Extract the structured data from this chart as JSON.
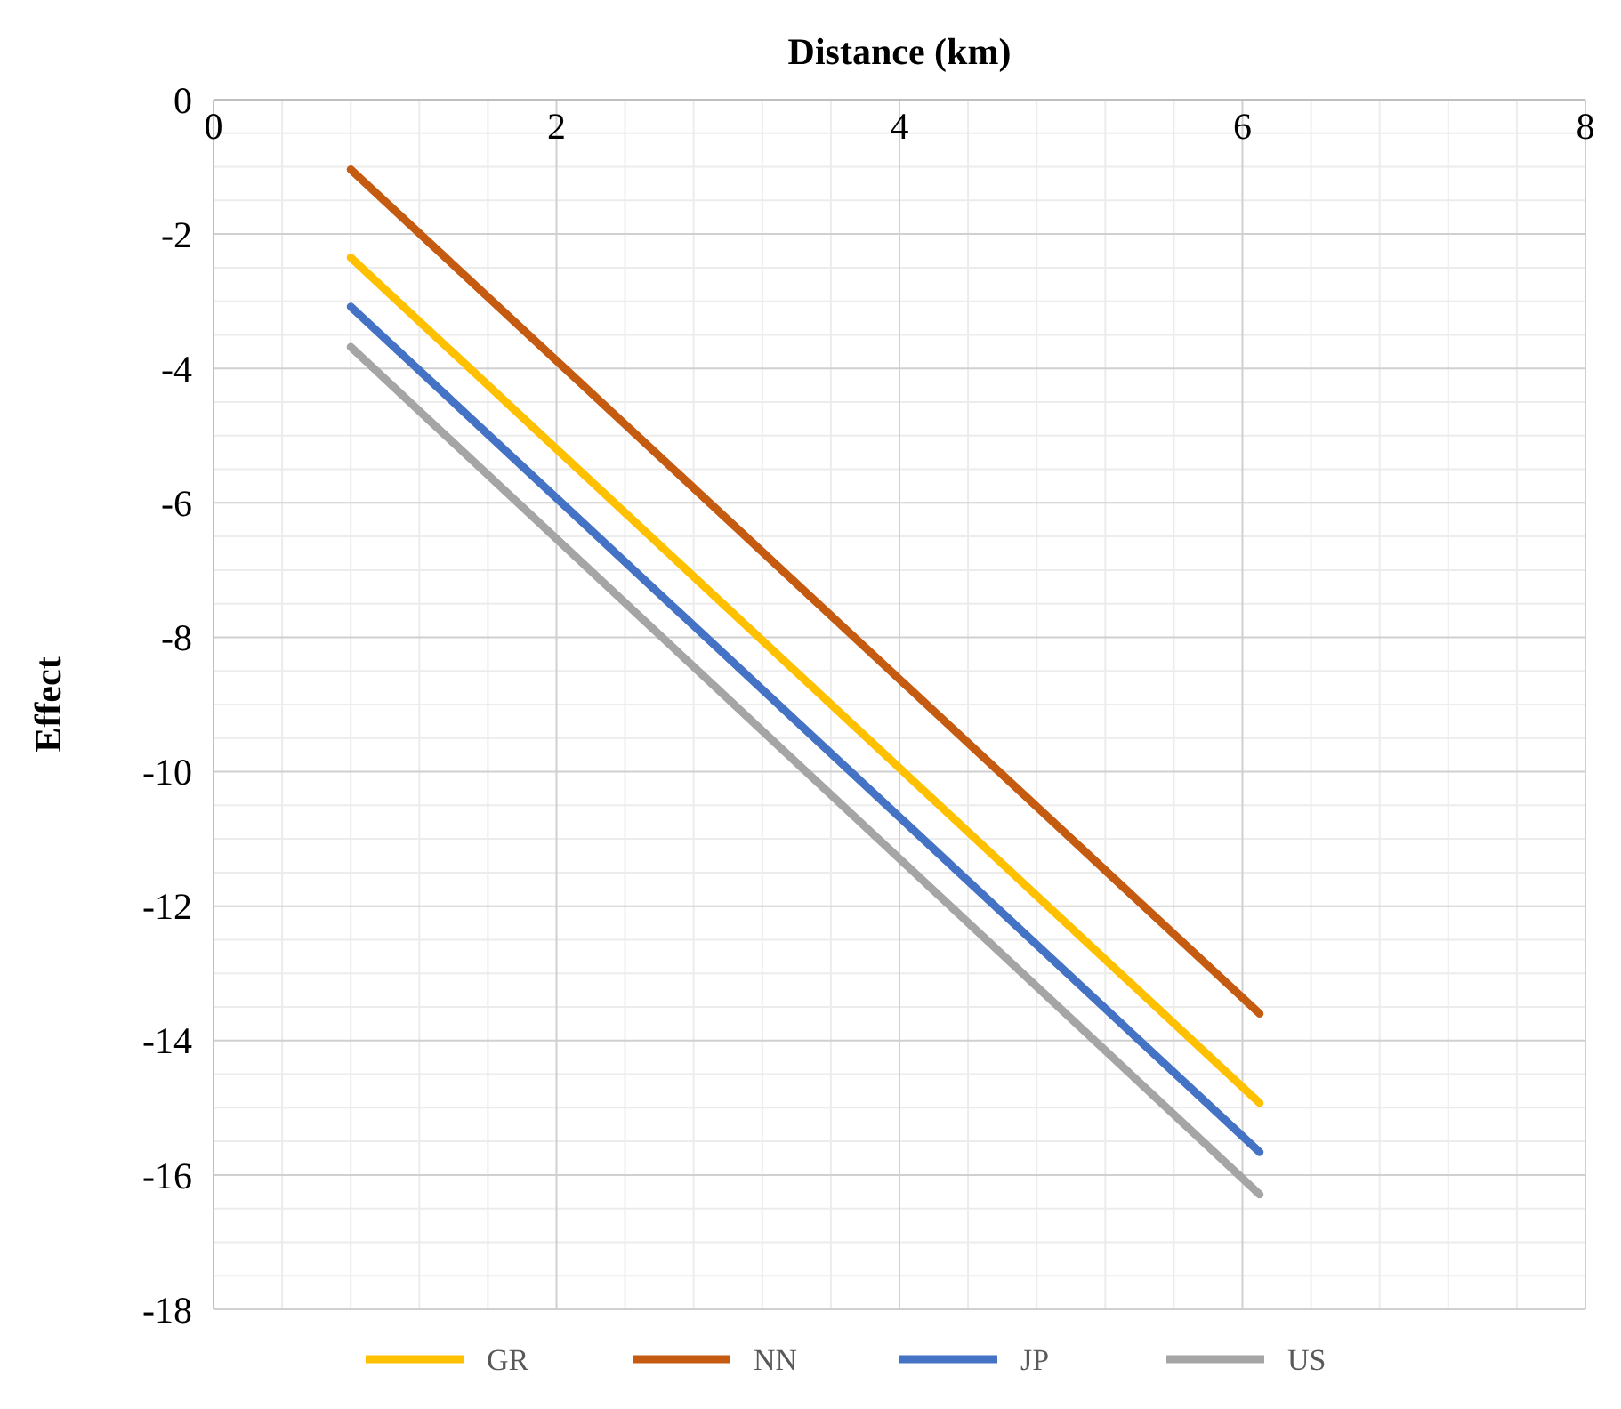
{
  "chart_data": {
    "type": "line",
    "xlabel": "Distance (km)",
    "ylabel": "Effect",
    "xlim": [
      0,
      8
    ],
    "xticks": [
      0,
      2,
      4,
      6,
      8
    ],
    "ylim": [
      -18,
      0
    ],
    "yticks": [
      -18,
      -16,
      -14,
      -12,
      -10,
      -8,
      -6,
      -4,
      -2,
      0
    ],
    "grid": true,
    "legend": "bottom",
    "marker": "none",
    "line_style": "solid",
    "x": [
      0.8,
      6.1
    ],
    "series": [
      {
        "name": "GR",
        "color": "#ffc000",
        "values": [
          -2.35,
          -14.93
        ]
      },
      {
        "name": "NN",
        "color": "#c55a11",
        "values": [
          -1.04,
          -13.6
        ]
      },
      {
        "name": "JP",
        "color": "#4472c4",
        "values": [
          -3.08,
          -15.66
        ]
      },
      {
        "name": "US",
        "color": "#a5a5a5",
        "values": [
          -3.68,
          -16.29
        ]
      }
    ]
  }
}
